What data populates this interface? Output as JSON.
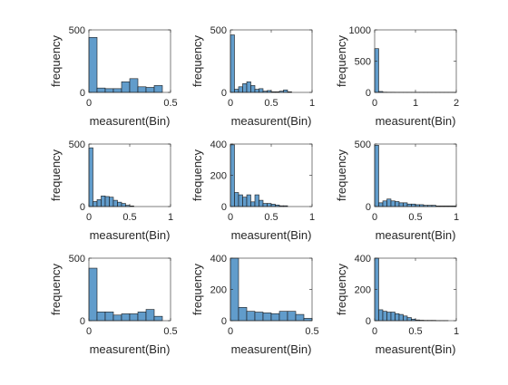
{
  "chart_data": [
    {
      "type": "bar",
      "xlabel": "measurent(Bin)",
      "ylabel": "frequency",
      "xlim": [
        0,
        0.5
      ],
      "ylim": [
        0,
        500
      ],
      "xticks": [
        0,
        0.5
      ],
      "yticks": [
        0,
        500
      ],
      "x_tick_labels": [
        "0",
        "0.5"
      ],
      "y_tick_labels": [
        "0",
        "500"
      ],
      "bin_edges": [
        0,
        0.05,
        0.1,
        0.15,
        0.2,
        0.25,
        0.3,
        0.35,
        0.4,
        0.45,
        0.5
      ],
      "values": [
        440,
        35,
        30,
        30,
        85,
        110,
        45,
        40,
        55,
        0
      ]
    },
    {
      "type": "bar",
      "xlabel": "measurent(Bin)",
      "ylabel": "frequency",
      "xlim": [
        0,
        1
      ],
      "ylim": [
        0,
        500
      ],
      "xticks": [
        0,
        0.5,
        1
      ],
      "yticks": [
        0,
        500
      ],
      "x_tick_labels": [
        "0",
        "0.5",
        "1"
      ],
      "y_tick_labels": [
        "0",
        "500"
      ],
      "bin_edges": [
        0,
        0.05,
        0.1,
        0.15,
        0.2,
        0.25,
        0.3,
        0.35,
        0.4,
        0.45,
        0.5,
        0.55,
        0.6,
        0.65,
        0.7,
        0.75
      ],
      "values": [
        460,
        25,
        45,
        70,
        85,
        55,
        25,
        30,
        10,
        15,
        5,
        5,
        10,
        20,
        5
      ]
    },
    {
      "type": "bar",
      "xlabel": "measurent(Bin)",
      "ylabel": "frequency",
      "xlim": [
        0,
        2
      ],
      "ylim": [
        0,
        1000
      ],
      "xticks": [
        0,
        1,
        2
      ],
      "yticks": [
        0,
        500,
        1000
      ],
      "x_tick_labels": [
        "0",
        "1",
        "2"
      ],
      "y_tick_labels": [
        "0",
        "500",
        "1000"
      ],
      "bin_edges": [
        0,
        0.1,
        0.2,
        0.3,
        0.4,
        0.5,
        0.6,
        0.7,
        0.8,
        0.9,
        1.0,
        1.1,
        1.2,
        1.3,
        1.4,
        1.5,
        1.6,
        1.7,
        1.8,
        1.9,
        2.0
      ],
      "values": [
        700,
        15,
        4,
        3,
        3,
        2,
        2,
        2,
        2,
        2,
        2,
        2,
        2,
        2,
        2,
        2,
        2,
        2,
        2,
        2
      ]
    },
    {
      "type": "bar",
      "xlabel": "measurent(Bin)",
      "ylabel": "frequency",
      "xlim": [
        0,
        1
      ],
      "ylim": [
        0,
        500
      ],
      "xticks": [
        0,
        0.5,
        1
      ],
      "yticks": [
        0,
        500
      ],
      "x_tick_labels": [
        "0",
        "0.5",
        "1"
      ],
      "y_tick_labels": [
        "0",
        "500"
      ],
      "bin_edges": [
        0,
        0.05,
        0.1,
        0.15,
        0.2,
        0.25,
        0.3,
        0.35,
        0.4,
        0.45,
        0.5,
        0.55
      ],
      "values": [
        470,
        40,
        55,
        85,
        80,
        75,
        50,
        35,
        25,
        10,
        5
      ]
    },
    {
      "type": "bar",
      "xlabel": "measurent(Bin)",
      "ylabel": "frequency",
      "xlim": [
        0,
        1
      ],
      "ylim": [
        0,
        400
      ],
      "xticks": [
        0,
        0.5,
        1
      ],
      "yticks": [
        0,
        200,
        400
      ],
      "x_tick_labels": [
        "0",
        "0.5",
        "1"
      ],
      "y_tick_labels": [
        "0",
        "200",
        "400"
      ],
      "bin_edges": [
        0,
        0.05,
        0.1,
        0.15,
        0.2,
        0.25,
        0.3,
        0.35,
        0.4,
        0.45,
        0.5,
        0.55,
        0.6,
        0.65,
        0.7
      ],
      "values": [
        395,
        90,
        75,
        60,
        75,
        30,
        75,
        40,
        20,
        20,
        15,
        10,
        5,
        5
      ]
    },
    {
      "type": "bar",
      "xlabel": "measurent(Bin)",
      "ylabel": "frequency",
      "xlim": [
        0,
        1
      ],
      "ylim": [
        0,
        500
      ],
      "xticks": [
        0,
        0.5,
        1
      ],
      "yticks": [
        0,
        500
      ],
      "x_tick_labels": [
        "0",
        "0.5",
        "1"
      ],
      "y_tick_labels": [
        "0",
        "500"
      ],
      "bin_edges": [
        0,
        0.05,
        0.1,
        0.15,
        0.2,
        0.25,
        0.3,
        0.35,
        0.4,
        0.45,
        0.5,
        0.55,
        0.6,
        0.65,
        0.7,
        0.75,
        0.8,
        0.85,
        0.9,
        0.95,
        1.0
      ],
      "values": [
        490,
        30,
        45,
        60,
        45,
        40,
        30,
        30,
        20,
        20,
        15,
        15,
        10,
        10,
        10,
        5,
        5,
        5,
        5,
        5
      ]
    },
    {
      "type": "bar",
      "xlabel": "measurent(Bin)",
      "ylabel": "frequency",
      "xlim": [
        0,
        0.5
      ],
      "ylim": [
        0,
        500
      ],
      "xticks": [
        0,
        0.5
      ],
      "yticks": [
        0,
        500
      ],
      "x_tick_labels": [
        "0",
        "0.5"
      ],
      "y_tick_labels": [
        "0",
        "500"
      ],
      "bin_edges": [
        0,
        0.05,
        0.1,
        0.15,
        0.2,
        0.25,
        0.3,
        0.35,
        0.4,
        0.45
      ],
      "values": [
        420,
        70,
        70,
        45,
        55,
        55,
        70,
        90,
        35
      ]
    },
    {
      "type": "bar",
      "xlabel": "measurent(Bin)",
      "ylabel": "frequency",
      "xlim": [
        0,
        0.5
      ],
      "ylim": [
        0,
        400
      ],
      "xticks": [
        0,
        0.5
      ],
      "yticks": [
        0,
        200,
        400
      ],
      "x_tick_labels": [
        "0",
        "0.5"
      ],
      "y_tick_labels": [
        "0",
        "200",
        "400"
      ],
      "bin_edges": [
        0,
        0.05,
        0.1,
        0.15,
        0.2,
        0.25,
        0.3,
        0.35,
        0.4,
        0.45,
        0.5
      ],
      "values": [
        400,
        85,
        60,
        55,
        50,
        45,
        60,
        60,
        40,
        15
      ]
    },
    {
      "type": "bar",
      "xlabel": "measurent(Bin)",
      "ylabel": "frequency",
      "xlim": [
        0,
        1
      ],
      "ylim": [
        0,
        400
      ],
      "xticks": [
        0,
        0.5,
        1
      ],
      "yticks": [
        0,
        200,
        400
      ],
      "x_tick_labels": [
        "0",
        "0.5",
        "1"
      ],
      "y_tick_labels": [
        "0",
        "200",
        "400"
      ],
      "bin_edges": [
        0,
        0.05,
        0.1,
        0.15,
        0.2,
        0.25,
        0.3,
        0.35,
        0.4,
        0.45,
        0.5,
        0.55,
        0.6,
        0.65,
        0.7,
        0.75,
        0.8,
        0.85,
        0.9
      ],
      "values": [
        400,
        70,
        60,
        55,
        55,
        45,
        40,
        30,
        20,
        10,
        5,
        3,
        2,
        2,
        2,
        1,
        1,
        1
      ]
    }
  ],
  "colors": {
    "bar_fill": "#619CCB",
    "bar_edge": "#1A1A1A",
    "axes": "#262626"
  }
}
